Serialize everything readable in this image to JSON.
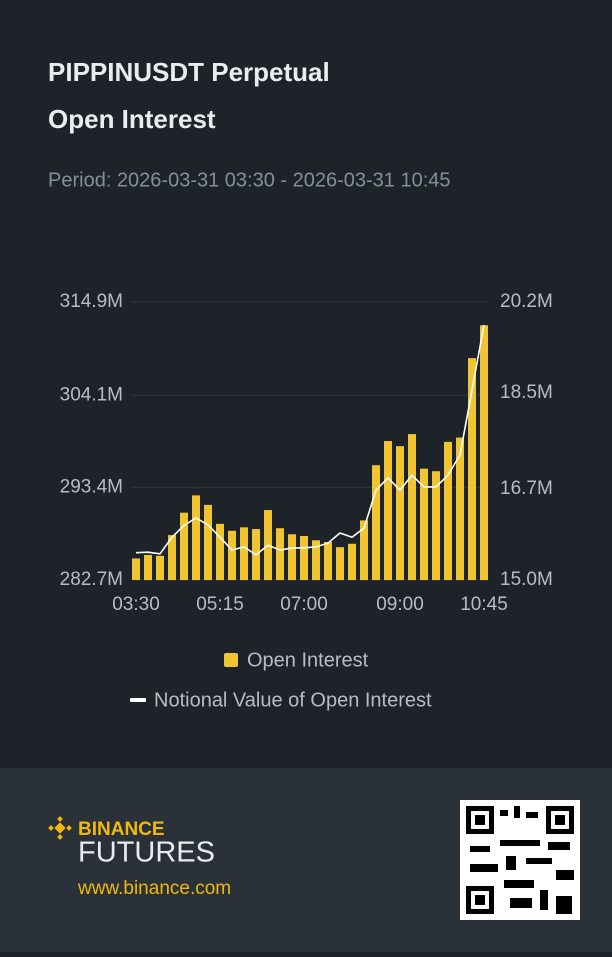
{
  "header": {
    "title": "PIPPINUSDT Perpetual",
    "subtitle": "Open Interest",
    "period": "Period: 2026-03-31 03:30 - 2026-03-31 10:45"
  },
  "chart_data": {
    "type": "bar",
    "categories": [
      "03:30",
      null,
      null,
      null,
      null,
      null,
      null,
      "05:15",
      null,
      null,
      null,
      null,
      null,
      null,
      "07:00",
      null,
      null,
      null,
      null,
      null,
      null,
      null,
      "09:00",
      null,
      null,
      null,
      null,
      null,
      null,
      "10:45"
    ],
    "series": [
      {
        "name": "Open Interest",
        "type": "bar",
        "color": "#f0c531",
        "values": [
          285.2,
          285.6,
          285.5,
          287.9,
          290.5,
          292.5,
          291.4,
          289.2,
          288.4,
          288.8,
          288.6,
          290.8,
          288.7,
          288.0,
          287.8,
          287.3,
          287.1,
          286.5,
          286.9,
          289.6,
          296.0,
          298.8,
          298.2,
          299.6,
          295.6,
          295.3,
          298.7,
          299.2,
          308.4,
          312.2
        ]
      },
      {
        "name": "Notional Value of Open Interest",
        "type": "line",
        "axis": "y2",
        "color": "#ffffff",
        "values": [
          15.51,
          15.52,
          15.49,
          15.8,
          16.02,
          16.16,
          16.03,
          15.8,
          15.56,
          15.62,
          15.47,
          15.65,
          15.56,
          15.6,
          15.6,
          15.62,
          15.69,
          15.88,
          15.8,
          15.97,
          16.68,
          16.91,
          16.68,
          16.96,
          16.74,
          16.74,
          16.96,
          17.34,
          18.55,
          19.77
        ]
      }
    ],
    "ylim": [
      282.7,
      314.9
    ],
    "yticks": [
      {
        "value": 282.7,
        "label": "282.7M"
      },
      {
        "value": 293.4,
        "label": "293.4M"
      },
      {
        "value": 304.1,
        "label": "304.1M"
      },
      {
        "value": 314.9,
        "label": "314.9M"
      }
    ],
    "y2lim": [
      15.0,
      20.2
    ],
    "y2ticks": [
      {
        "value": 15.0,
        "label": "15.0M"
      },
      {
        "value": 16.7,
        "label": "16.7M"
      },
      {
        "value": 18.5,
        "label": "18.5M"
      },
      {
        "value": 20.2,
        "label": "20.2M"
      }
    ],
    "grid": true
  },
  "footer": {
    "brand": "BINANCE",
    "product": "FUTURES",
    "url": "www.binance.com"
  }
}
